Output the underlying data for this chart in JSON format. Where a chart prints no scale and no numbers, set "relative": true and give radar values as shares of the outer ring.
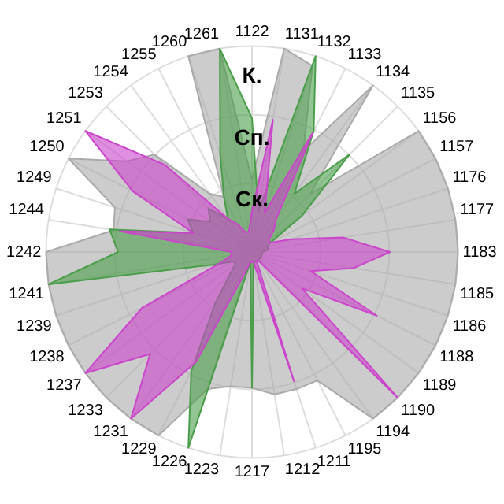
{
  "chart_data": {
    "type": "radar",
    "relative": true,
    "grid": true,
    "legend": false,
    "marker": "none",
    "categories": [
      "1122",
      "1131",
      "1132",
      "1133",
      "1134",
      "1135",
      "1156",
      "1157",
      "1176",
      "1177",
      "1183",
      "1185",
      "1186",
      "1188",
      "1189",
      "1190",
      "1194",
      "1195",
      "1211",
      "1212",
      "1217",
      "1223",
      "1226",
      "1229",
      "1231",
      "1233",
      "1237",
      "1238",
      "1239",
      "1241",
      "1242",
      "1244",
      "1249",
      "1250",
      "1251",
      "1253",
      "1254",
      "1255",
      "1260",
      "1261"
    ],
    "series": [
      {
        "name": "К.",
        "color": "#aaaaaa",
        "values": [
          0.35,
          1.0,
          0.95,
          0.55,
          1.0,
          0.4,
          1.0,
          1.0,
          1.0,
          1.0,
          1.0,
          1.0,
          1.0,
          1.0,
          1.0,
          1.0,
          1.0,
          0.7,
          0.7,
          0.7,
          0.66,
          0.66,
          0.7,
          1.0,
          1.0,
          1.0,
          1.0,
          1.0,
          1.0,
          1.0,
          1.0,
          0.68,
          0.7,
          1.0,
          0.75,
          0.67,
          0.35,
          0.3,
          1.0,
          1.0
        ]
      },
      {
        "name": "Сп.",
        "color": "#4a9e4a",
        "values": [
          0.65,
          0.2,
          1.0,
          0.66,
          0.35,
          0.67,
          0.3,
          0.1,
          0.08,
          0.08,
          0.05,
          0.05,
          0.05,
          0.05,
          0.05,
          0.05,
          0.05,
          0.05,
          0.05,
          0.05,
          0.66,
          0.05,
          1.0,
          0.65,
          0.3,
          0.15,
          0.1,
          0.1,
          0.2,
          1.0,
          0.65,
          0.7,
          0.3,
          0.35,
          0.25,
          0.3,
          0.2,
          0.3,
          0.5,
          1.0
        ]
      },
      {
        "name": "Ск.",
        "color": "#cc44cc",
        "values": [
          0.2,
          0.65,
          0.2,
          0.65,
          0.2,
          0.15,
          0.1,
          0.1,
          0.2,
          0.45,
          0.67,
          0.5,
          0.3,
          0.68,
          0.3,
          1.0,
          0.05,
          0.05,
          0.66,
          0.05,
          0.05,
          0.05,
          0.1,
          0.6,
          1.0,
          0.7,
          1.0,
          0.6,
          0.15,
          0.1,
          0.1,
          0.65,
          0.3,
          0.65,
          1.0,
          0.6,
          0.2,
          0.15,
          0.1,
          0.1
        ]
      }
    ]
  }
}
